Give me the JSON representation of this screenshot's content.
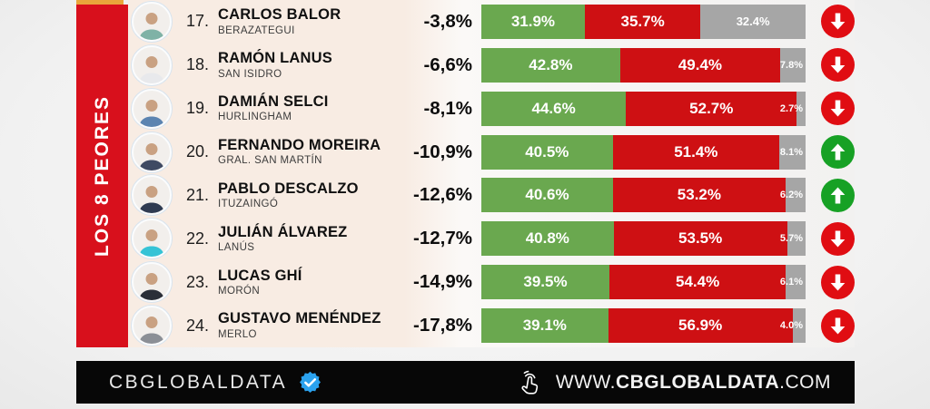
{
  "banner": {
    "title": "LOS 8 PEORES"
  },
  "colors": {
    "banner_red": "#d8101c",
    "gold_strip": "#e9a63b",
    "positive_green": "#6aa84f",
    "negative_red": "#ce1013",
    "neutral_gray": "#a6a6a6",
    "trend_down_red": "#e00d12",
    "trend_up_green": "#17a125",
    "verified_blue": "#2ba2ee"
  },
  "rows": [
    {
      "rank_label": "17.",
      "name": "CARLOS BALOR",
      "district": "BERAZATEGUI",
      "change": "-3,8%",
      "positive_label": "31.9%",
      "negative_label": "35.7%",
      "neutral_label": "32.4%",
      "positive": 31.9,
      "negative": 35.7,
      "neutral": 32.4,
      "trend": "down",
      "avatar_shirt": "#7fb2a6"
    },
    {
      "rank_label": "18.",
      "name": "RAMÓN LANUS",
      "district": "SAN ISIDRO",
      "change": "-6,6%",
      "positive_label": "42.8%",
      "negative_label": "49.4%",
      "neutral_label": "7.8%",
      "positive": 42.8,
      "negative": 49.4,
      "neutral": 7.8,
      "trend": "down",
      "avatar_shirt": "#e8e9ec"
    },
    {
      "rank_label": "19.",
      "name": "DAMIÁN SELCI",
      "district": "HURLINGHAM",
      "change": "-8,1%",
      "positive_label": "44.6%",
      "negative_label": "52.7%",
      "neutral_label": "2.7%",
      "positive": 44.6,
      "negative": 52.7,
      "neutral": 2.7,
      "trend": "down",
      "avatar_shirt": "#5b84b1"
    },
    {
      "rank_label": "20.",
      "name": "FERNANDO MOREIRA",
      "district": "GRAL. SAN MARTÍN",
      "change": "-10,9%",
      "positive_label": "40.5%",
      "negative_label": "51.4%",
      "neutral_label": "8.1%",
      "positive": 40.5,
      "negative": 51.4,
      "neutral": 8.1,
      "trend": "up",
      "avatar_shirt": "#3f4a63"
    },
    {
      "rank_label": "21.",
      "name": "PABLO DESCALZO",
      "district": "ITUZAINGÓ",
      "change": "-12,6%",
      "positive_label": "40.6%",
      "negative_label": "53.2%",
      "neutral_label": "6.2%",
      "positive": 40.6,
      "negative": 53.2,
      "neutral": 6.2,
      "trend": "up",
      "avatar_shirt": "#2f3b52"
    },
    {
      "rank_label": "22.",
      "name": "JULIÁN ÁLVAREZ",
      "district": "LANÚS",
      "change": "-12,7%",
      "positive_label": "40.8%",
      "negative_label": "53.5%",
      "neutral_label": "5.7%",
      "positive": 40.8,
      "negative": 53.5,
      "neutral": 5.7,
      "trend": "down",
      "avatar_shirt": "#35c3d6"
    },
    {
      "rank_label": "23.",
      "name": "LUCAS GHÍ",
      "district": "MORÓN",
      "change": "-14,9%",
      "positive_label": "39.5%",
      "negative_label": "54.4%",
      "neutral_label": "6.1%",
      "positive": 39.5,
      "negative": 54.4,
      "neutral": 6.1,
      "trend": "down",
      "avatar_shirt": "#2b2f38"
    },
    {
      "rank_label": "24.",
      "name": "GUSTAVO MENÉNDEZ",
      "district": "MERLO",
      "change": "-17,8%",
      "positive_label": "39.1%",
      "negative_label": "56.9%",
      "neutral_label": "4.0%",
      "positive": 39.1,
      "negative": 56.9,
      "neutral": 4.0,
      "trend": "down",
      "avatar_shirt": "#8b8f96"
    }
  ],
  "footer": {
    "brand": "CBGLOBALDATA",
    "website_prefix": "WWW.",
    "website_brand": "CBGLOBALDATA",
    "website_suffix": ".COM"
  },
  "chart_data": {
    "type": "bar",
    "variant": "horizontal-stacked",
    "title": "LOS 8 PEORES",
    "categories": [
      "17. CARLOS BALOR (BERAZATEGUI)",
      "18. RAMÓN LANUS (SAN ISIDRO)",
      "19. DAMIÁN SELCI (HURLINGHAM)",
      "20. FERNANDO MOREIRA (GRAL. SAN MARTÍN)",
      "21. PABLO DESCALZO (ITUZAINGÓ)",
      "22. JULIÁN ÁLVAREZ (LANÚS)",
      "23. LUCAS GHÍ (MORÓN)",
      "24. GUSTAVO MENÉNDEZ (MERLO)"
    ],
    "series": [
      {
        "name": "green-positive",
        "values": [
          31.9,
          42.8,
          44.6,
          40.5,
          40.6,
          40.8,
          39.5,
          39.1
        ]
      },
      {
        "name": "red-negative",
        "values": [
          35.7,
          49.4,
          52.7,
          51.4,
          53.2,
          53.5,
          54.4,
          56.9
        ]
      },
      {
        "name": "gray-undecided",
        "values": [
          32.4,
          7.8,
          2.7,
          8.1,
          6.2,
          5.7,
          6.1,
          4.0
        ]
      }
    ],
    "change_percent": [
      -3.8,
      -6.6,
      -8.1,
      -10.9,
      -12.6,
      -12.7,
      -14.9,
      -17.8
    ],
    "trend_arrows": [
      "down",
      "down",
      "down",
      "up",
      "up",
      "down",
      "down",
      "down"
    ],
    "xlim": [
      0,
      100
    ],
    "legend": "none",
    "grid": false
  }
}
